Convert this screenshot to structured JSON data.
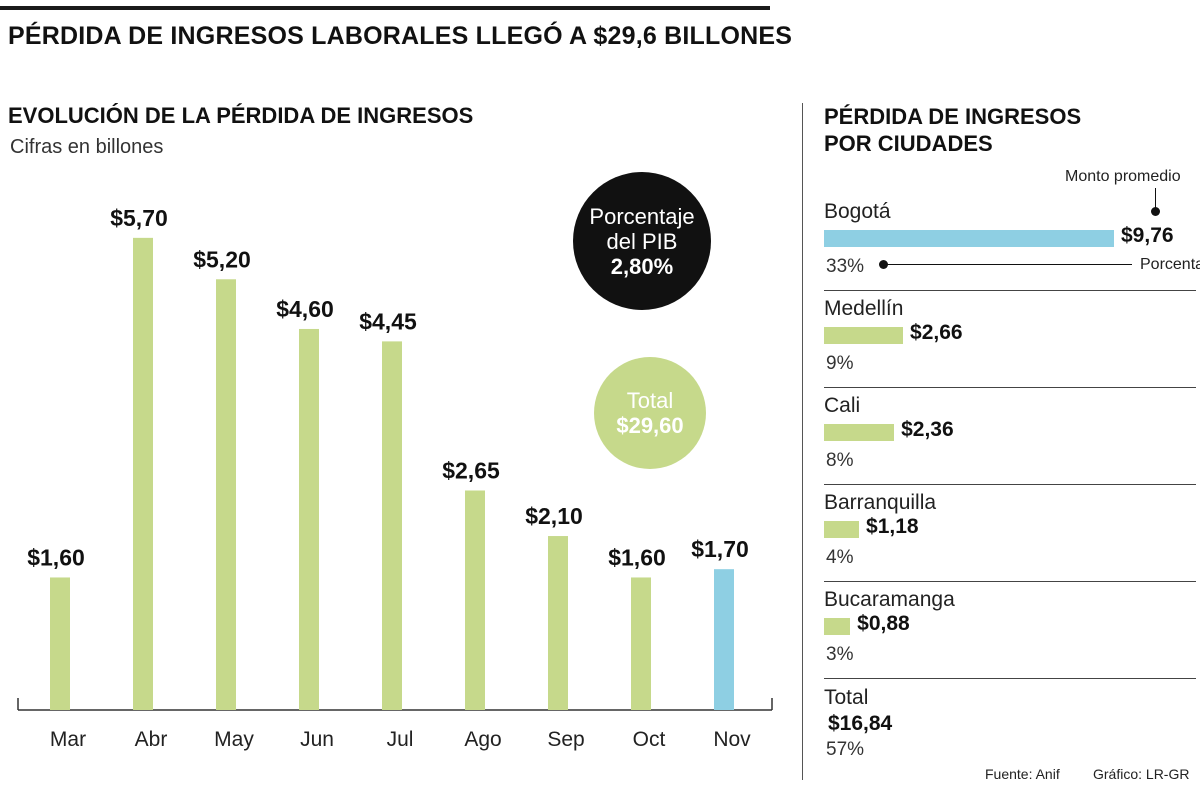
{
  "header": {
    "title": "PÉRDIDA DE INGRESOS LABORALES LLEGÓ A $29,6 BILLONES"
  },
  "left": {
    "title": "EVOLUCIÓN DE LA PÉRDIDA DE INGRESOS",
    "subtitle": "Cifras en billones",
    "pib_circle": {
      "line1": "Porcentaje",
      "line2": "del PIB",
      "value": "2,80%"
    },
    "total_circle": {
      "label": "Total",
      "value": "$29,60"
    }
  },
  "chart_data": {
    "type": "bar",
    "title": "EVOLUCIÓN DE LA PÉRDIDA DE INGRESOS",
    "subtitle": "Cifras en billones",
    "categories": [
      "Mar",
      "Abr",
      "May",
      "Jun",
      "Jul",
      "Ago",
      "Sep",
      "Oct",
      "Nov"
    ],
    "values": [
      1.6,
      5.7,
      5.2,
      4.6,
      4.45,
      2.65,
      2.1,
      1.6,
      1.7
    ],
    "labels": [
      "$1,60",
      "$5,70",
      "$5,20",
      "$4,60",
      "$4,45",
      "$2,65",
      "$2,10",
      "$1,60",
      "$1,70"
    ],
    "colors": [
      "#c6d98b",
      "#c6d98b",
      "#c6d98b",
      "#c6d98b",
      "#c6d98b",
      "#c6d98b",
      "#c6d98b",
      "#c6d98b",
      "#8ecfe3"
    ],
    "ylim": [
      0,
      6
    ],
    "grid": false
  },
  "cities": {
    "title_line1": "PÉRDIDA DE INGRESOS",
    "title_line2": "POR CIUDADES",
    "annotation_amount": "Monto promedio",
    "annotation_pct": "Porcentaje",
    "items": [
      {
        "name": "Bogotá",
        "value": 9.76,
        "label": "$9,76",
        "pct": "33%",
        "color": "#8ecfe3"
      },
      {
        "name": "Medellín",
        "value": 2.66,
        "label": "$2,66",
        "pct": "9%",
        "color": "#c6d98b"
      },
      {
        "name": "Cali",
        "value": 2.36,
        "label": "$2,36",
        "pct": "8%",
        "color": "#c6d98b"
      },
      {
        "name": "Barranquilla",
        "value": 1.18,
        "label": "$1,18",
        "pct": "4%",
        "color": "#c6d98b"
      },
      {
        "name": "Bucaramanga",
        "value": 0.88,
        "label": "$0,88",
        "pct": "3%",
        "color": "#c6d98b"
      }
    ],
    "total": {
      "label": "Total",
      "value": "$16,84",
      "pct": "57%"
    }
  },
  "footer": {
    "source": "Fuente: Anif",
    "credit": "Gráfico: LR-GR"
  }
}
